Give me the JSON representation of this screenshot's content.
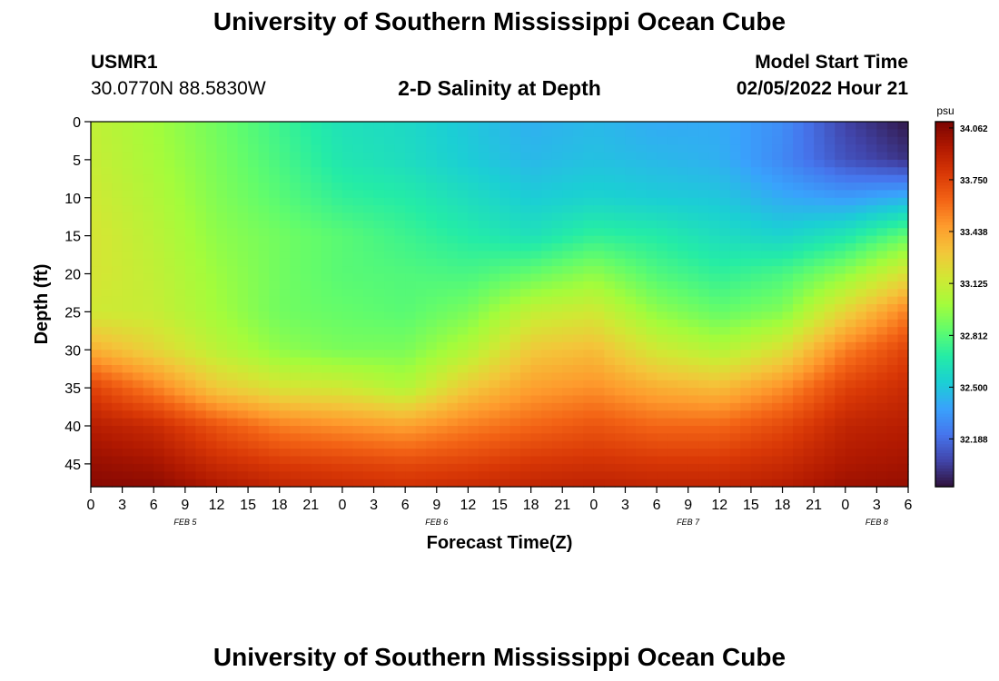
{
  "header": {
    "title": "University of Southern Mississippi Ocean Cube",
    "station_id": "USMR1",
    "station_coords": "30.0770N  88.5830W",
    "plot_title": "2-D Salinity at Depth",
    "model_start_label": "Model Start Time",
    "model_start_value": "02/05/2022 Hour 21"
  },
  "footer": {
    "title": "University of Southern Mississippi Ocean Cube"
  },
  "colors": {
    "colormap": [
      "#30123b",
      "#4145ab",
      "#4675ed",
      "#39a2fc",
      "#1bcfd4",
      "#24eca6",
      "#61fc6c",
      "#a4fc3b",
      "#d1e834",
      "#f3c63a",
      "#fe9b2d",
      "#f36315",
      "#d93806",
      "#b11901",
      "#7a0402"
    ]
  },
  "chart_data": {
    "type": "heatmap",
    "title": "2-D Salinity at Depth",
    "xlabel": "Forecast Time(Z)",
    "ylabel": "Depth (ft)",
    "x_ticks": [
      "0",
      "3",
      "6",
      "9",
      "12",
      "15",
      "18",
      "21",
      "0",
      "3",
      "6",
      "9",
      "12",
      "15",
      "18",
      "21",
      "0",
      "3",
      "6",
      "9",
      "12",
      "15",
      "18",
      "21",
      "0",
      "3",
      "6"
    ],
    "date_labels": [
      {
        "label": "FEB 5",
        "hour": 9
      },
      {
        "label": "FEB 6",
        "hour": 33
      },
      {
        "label": "FEB 7",
        "hour": 57
      },
      {
        "label": "FEB 8",
        "hour": 75
      }
    ],
    "xlim": [
      0,
      78
    ],
    "y_ticks": [
      0,
      5,
      10,
      15,
      20,
      25,
      30,
      35,
      40,
      45
    ],
    "ylim": [
      0,
      48
    ],
    "colorbar": {
      "unit": "psu",
      "ticks": [
        "34.062",
        "33.750",
        "33.438",
        "33.125",
        "32.812",
        "32.500",
        "32.188"
      ],
      "range": [
        31.9,
        34.1
      ]
    },
    "salinity_grid": {
      "depths_ft": [
        0,
        5,
        10,
        15,
        20,
        25,
        30,
        35,
        40,
        45,
        48
      ],
      "hours": [
        0,
        6,
        12,
        18,
        24,
        30,
        36,
        42,
        48,
        54,
        60,
        66,
        72,
        78
      ],
      "values_psu": [
        [
          33.1,
          33.0,
          32.88,
          32.75,
          32.62,
          32.58,
          32.5,
          32.42,
          32.45,
          32.4,
          32.4,
          32.3,
          32.05,
          31.92
        ],
        [
          33.12,
          33.02,
          32.9,
          32.78,
          32.65,
          32.6,
          32.52,
          32.45,
          32.48,
          32.45,
          32.42,
          32.28,
          32.1,
          32.0
        ],
        [
          33.15,
          33.05,
          32.92,
          32.82,
          32.72,
          32.68,
          32.6,
          32.52,
          32.55,
          32.52,
          32.5,
          32.4,
          32.35,
          32.42
        ],
        [
          33.18,
          33.08,
          32.95,
          32.88,
          32.82,
          32.75,
          32.68,
          32.62,
          32.72,
          32.68,
          32.6,
          32.55,
          32.65,
          32.85
        ],
        [
          33.18,
          33.1,
          32.98,
          32.88,
          32.82,
          32.8,
          32.78,
          32.85,
          32.95,
          32.8,
          32.72,
          32.78,
          32.95,
          33.2
        ],
        [
          33.15,
          33.12,
          33.0,
          32.88,
          32.85,
          32.82,
          32.9,
          33.1,
          33.15,
          32.95,
          32.85,
          32.92,
          33.25,
          33.55
        ],
        [
          33.4,
          33.25,
          33.08,
          32.95,
          32.9,
          32.9,
          33.05,
          33.3,
          33.35,
          33.15,
          33.05,
          33.2,
          33.55,
          33.75
        ],
        [
          33.75,
          33.55,
          33.3,
          33.18,
          33.15,
          33.05,
          33.3,
          33.45,
          33.5,
          33.4,
          33.35,
          33.5,
          33.75,
          33.85
        ],
        [
          33.92,
          33.85,
          33.68,
          33.55,
          33.5,
          33.45,
          33.55,
          33.62,
          33.68,
          33.62,
          33.62,
          33.72,
          33.88,
          33.92
        ],
        [
          34.02,
          33.98,
          33.85,
          33.78,
          33.75,
          33.72,
          33.75,
          33.8,
          33.82,
          33.8,
          33.8,
          33.85,
          33.95,
          33.98
        ],
        [
          34.06,
          34.05,
          33.95,
          33.88,
          33.85,
          33.82,
          33.85,
          33.88,
          33.9,
          33.88,
          33.88,
          33.92,
          34.0,
          34.02
        ]
      ]
    }
  }
}
